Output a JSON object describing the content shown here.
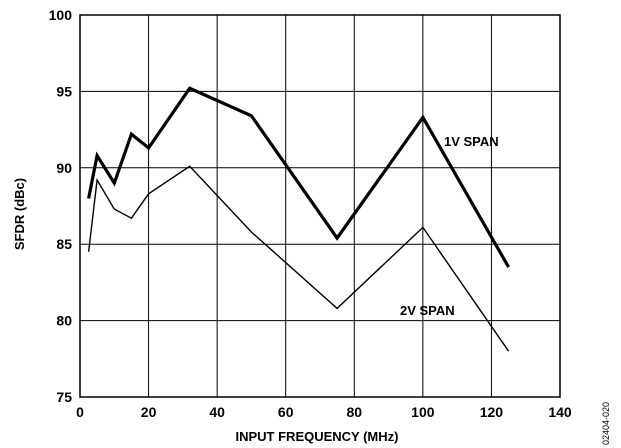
{
  "chart_data": {
    "type": "line",
    "title": "",
    "xlabel": "INPUT FREQUENCY (MHz)",
    "ylabel": "SFDR (dBc)",
    "xlim": [
      0,
      140
    ],
    "ylim": [
      75,
      100
    ],
    "xticks": [
      0,
      20,
      40,
      60,
      80,
      100,
      120,
      140
    ],
    "yticks": [
      75,
      80,
      85,
      90,
      95,
      100
    ],
    "grid": true,
    "legend": "inline labels",
    "series": [
      {
        "name": "1V SPAN",
        "x": [
          2.5,
          5,
          10,
          15,
          20,
          32,
          50,
          75,
          100,
          125
        ],
        "y": [
          88.0,
          90.8,
          89.0,
          92.2,
          91.3,
          95.2,
          93.4,
          85.4,
          93.3,
          83.5
        ],
        "color": "#000000",
        "weight": "thick"
      },
      {
        "name": "2V SPAN",
        "x": [
          2.5,
          5,
          10,
          15,
          20,
          32,
          50,
          75,
          100,
          125
        ],
        "y": [
          84.5,
          89.2,
          87.3,
          86.7,
          88.3,
          90.1,
          85.8,
          80.8,
          86.1,
          78.0
        ],
        "color": "#000000",
        "weight": "thin"
      }
    ]
  },
  "figure_id": "02404-020"
}
